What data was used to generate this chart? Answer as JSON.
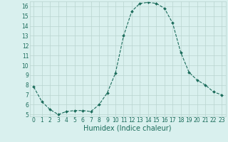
{
  "x": [
    0,
    1,
    2,
    3,
    4,
    5,
    6,
    7,
    8,
    9,
    10,
    11,
    12,
    13,
    14,
    15,
    16,
    17,
    18,
    19,
    20,
    21,
    22,
    23
  ],
  "y": [
    7.8,
    6.3,
    5.5,
    5.0,
    5.3,
    5.4,
    5.4,
    5.3,
    6.0,
    7.2,
    9.2,
    13.0,
    15.5,
    16.3,
    16.4,
    16.3,
    15.8,
    14.3,
    11.3,
    9.3,
    8.5,
    8.0,
    7.3,
    7.0
  ],
  "line_color": "#1a6b5a",
  "marker": "D",
  "marker_size": 2.0,
  "bg_color": "#d9f0ee",
  "grid_color": "#b8d4cf",
  "xlabel": "Humidex (Indice chaleur)",
  "xlabel_color": "#1a6b5a",
  "tick_color": "#1a6b5a",
  "ylim": [
    4.8,
    16.5
  ],
  "xlim": [
    -0.5,
    23.5
  ],
  "yticks": [
    5,
    6,
    7,
    8,
    9,
    10,
    11,
    12,
    13,
    14,
    15,
    16
  ],
  "xticks": [
    0,
    1,
    2,
    3,
    4,
    5,
    6,
    7,
    8,
    9,
    10,
    11,
    12,
    13,
    14,
    15,
    16,
    17,
    18,
    19,
    20,
    21,
    22,
    23
  ],
  "tick_fontsize": 5.5,
  "xlabel_fontsize": 7.0,
  "linewidth": 0.8
}
